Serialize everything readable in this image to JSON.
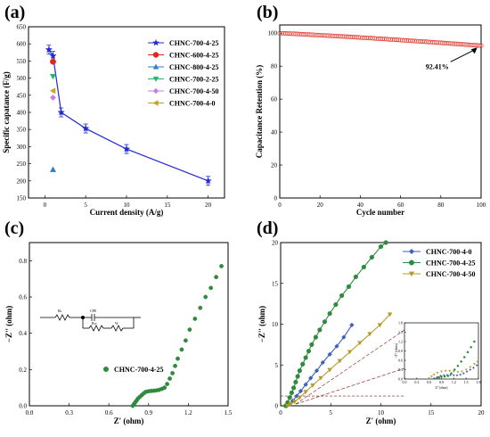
{
  "chart_data": [
    {
      "id": "a",
      "label": "(a)",
      "type": "line",
      "xlabel": "Current density (A/g)",
      "ylabel": "Specific capatance (F/g)",
      "xlim": [
        -2,
        22
      ],
      "ylim": [
        150,
        650
      ],
      "xticks": [
        0,
        5,
        10,
        15,
        20
      ],
      "yticks": [
        150,
        200,
        250,
        300,
        350,
        400,
        450,
        500,
        550,
        600,
        650
      ],
      "legend_position": "top-right",
      "series": [
        {
          "name": "CHNC-700-4-25",
          "color": "#1f2bd0",
          "marker": "star",
          "line": true,
          "errorbars": true,
          "points": [
            [
              0.5,
              583
            ],
            [
              1,
              565
            ],
            [
              2,
              400
            ],
            [
              5,
              353
            ],
            [
              10,
              293
            ],
            [
              20,
              200
            ]
          ]
        },
        {
          "name": "CHNC-600-4-25",
          "color": "#e3261b",
          "marker": "circle",
          "line": false,
          "points": [
            [
              1,
              548
            ]
          ]
        },
        {
          "name": "CHNC-800-4-25",
          "color": "#2b82c9",
          "marker": "triangle-up",
          "line": false,
          "points": [
            [
              1,
              233
            ]
          ]
        },
        {
          "name": "CHNC-700-2-25",
          "color": "#22b573",
          "marker": "triangle-down",
          "line": false,
          "points": [
            [
              1,
              505
            ]
          ]
        },
        {
          "name": "CHNC-700-4-50",
          "color": "#c57ee8",
          "marker": "diamond",
          "line": false,
          "points": [
            [
              1,
              443
            ]
          ]
        },
        {
          "name": "CHNC-700-4-0",
          "color": "#c8a227",
          "marker": "triangle-left",
          "line": false,
          "points": [
            [
              1,
              463
            ]
          ]
        }
      ]
    },
    {
      "id": "b",
      "label": "(b)",
      "type": "scatter",
      "xlabel": "Cycle number",
      "ylabel": "Capacitance Retention (%)",
      "xlim": [
        0,
        100
      ],
      "ylim": [
        0,
        105
      ],
      "xticks": [
        0,
        20,
        40,
        60,
        80,
        100
      ],
      "yticks": [
        0,
        20,
        40,
        60,
        80,
        100
      ],
      "series": [
        {
          "name": "",
          "color": "#e3261b",
          "marker": "circle-open",
          "start": 100,
          "end": 92.41,
          "count": 101
        }
      ],
      "annotation": "92.41%"
    },
    {
      "id": "c",
      "label": "(c)",
      "type": "scatter",
      "xlabel": "Z' (ohm)",
      "ylabel": "−Z'' (ohm)",
      "xlim": [
        0,
        1.5
      ],
      "ylim": [
        0,
        0.9
      ],
      "xticks": [
        "0.0",
        "0.3",
        "0.6",
        "0.9",
        "1.2",
        "1.5"
      ],
      "yticks": [
        "0.0",
        "0.2",
        "0.4",
        "0.6",
        "0.8"
      ],
      "legend": "CHNC-700-4-25",
      "series": [
        {
          "name": "CHNC-700-4-25",
          "color": "#2e8b3d",
          "marker": "circle",
          "points": [
            [
              0.78,
              0.0
            ],
            [
              0.79,
              0.01
            ],
            [
              0.8,
              0.02
            ],
            [
              0.81,
              0.03
            ],
            [
              0.82,
              0.04
            ],
            [
              0.835,
              0.05
            ],
            [
              0.85,
              0.06
            ],
            [
              0.865,
              0.07
            ],
            [
              0.88,
              0.077
            ],
            [
              0.9,
              0.08
            ],
            [
              0.92,
              0.082
            ],
            [
              0.94,
              0.083
            ],
            [
              0.96,
              0.085
            ],
            [
              0.98,
              0.088
            ],
            [
              1.0,
              0.093
            ],
            [
              1.02,
              0.1
            ],
            [
              1.04,
              0.12
            ],
            [
              1.06,
              0.15
            ],
            [
              1.08,
              0.18
            ],
            [
              1.1,
              0.22
            ],
            [
              1.12,
              0.26
            ],
            [
              1.15,
              0.31
            ],
            [
              1.18,
              0.36
            ],
            [
              1.21,
              0.42
            ],
            [
              1.25,
              0.48
            ],
            [
              1.29,
              0.54
            ],
            [
              1.33,
              0.6
            ],
            [
              1.37,
              0.65
            ],
            [
              1.41,
              0.71
            ],
            [
              1.45,
              0.77
            ]
          ]
        }
      ],
      "circuit_labels": [
        "Rs",
        "CPE",
        "Rct",
        "W"
      ]
    },
    {
      "id": "d",
      "label": "(d)",
      "type": "line",
      "xlabel": "Z' (ohm)",
      "ylabel": "−Z'' (ohm)",
      "xlim": [
        0,
        20
      ],
      "ylim": [
        0,
        20
      ],
      "xticks": [
        0,
        5,
        10,
        15,
        20
      ],
      "yticks": [
        0,
        5,
        10,
        15,
        20
      ],
      "legend_position": "top-right",
      "series": [
        {
          "name": "CHNC-700-4-0",
          "color": "#3f5fb8",
          "marker": "diamond",
          "points": [
            [
              0.6,
              0
            ],
            [
              0.9,
              0.2
            ],
            [
              1.2,
              0.6
            ],
            [
              1.6,
              1.2
            ],
            [
              2.0,
              1.8
            ],
            [
              2.5,
              2.6
            ],
            [
              3.0,
              3.4
            ],
            [
              3.6,
              4.3
            ],
            [
              4.2,
              5.3
            ],
            [
              4.9,
              6.3
            ],
            [
              5.6,
              7.3
            ],
            [
              6.3,
              8.4
            ],
            [
              7.1,
              9.9
            ]
          ]
        },
        {
          "name": "CHNC-700-4-25",
          "color": "#2e8b3d",
          "marker": "circle",
          "points": [
            [
              0.5,
              0
            ],
            [
              0.7,
              0.4
            ],
            [
              0.9,
              1.0
            ],
            [
              1.1,
              1.6
            ],
            [
              1.3,
              2.2
            ],
            [
              1.5,
              2.9
            ],
            [
              1.7,
              3.6
            ],
            [
              1.9,
              4.3
            ],
            [
              2.2,
              5.1
            ],
            [
              2.5,
              5.9
            ],
            [
              2.8,
              6.7
            ],
            [
              3.1,
              7.5
            ],
            [
              3.5,
              8.4
            ],
            [
              3.9,
              9.3
            ],
            [
              4.4,
              10.3
            ],
            [
              4.9,
              11.3
            ],
            [
              5.5,
              12.4
            ],
            [
              6.1,
              13.5
            ],
            [
              6.8,
              14.6
            ],
            [
              7.5,
              15.8
            ],
            [
              8.3,
              17.0
            ],
            [
              9.1,
              18.2
            ],
            [
              10.0,
              19.5
            ],
            [
              10.5,
              20.0
            ]
          ]
        },
        {
          "name": "CHNC-700-4-50",
          "color": "#b59a2a",
          "marker": "triangle-down",
          "points": [
            [
              0.7,
              0
            ],
            [
              1.0,
              0.2
            ],
            [
              1.4,
              0.5
            ],
            [
              1.9,
              1.0
            ],
            [
              2.5,
              1.7
            ],
            [
              3.2,
              2.5
            ],
            [
              4.0,
              3.4
            ],
            [
              4.9,
              4.4
            ],
            [
              5.9,
              5.5
            ],
            [
              6.9,
              6.6
            ],
            [
              7.9,
              7.7
            ],
            [
              8.9,
              8.8
            ],
            [
              9.9,
              9.9
            ],
            [
              10.9,
              11.2
            ]
          ]
        }
      ],
      "inset": {
        "xlabel": "Z' (ohm)",
        "ylabel": "−Z'' (ohm)",
        "xlim": [
          0.0,
          1.8
        ],
        "ylim": [
          0.0,
          1.8
        ],
        "xticks": [
          "0.0",
          "0.3",
          "0.6",
          "0.9",
          "1.2",
          "1.5",
          "1.8"
        ],
        "yticks": [
          "0.0",
          "0.3",
          "0.6",
          "0.9",
          "1.2",
          "1.5",
          "1.8"
        ]
      }
    }
  ]
}
